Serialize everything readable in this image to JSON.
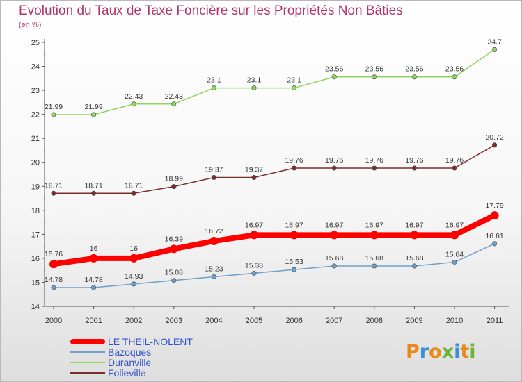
{
  "header": {
    "title": "Evolution du Taux de Taxe Foncière sur les Propriétés Non Bâties",
    "subtitle": "(en %)"
  },
  "logo": {
    "letters": [
      "P",
      "r",
      "o",
      "x",
      "i",
      "t",
      "i"
    ],
    "colors": [
      "#e8891b",
      "#3b8fd6",
      "#e8891b",
      "#6bb63a",
      "#3b8fd6",
      "#e8891b",
      "#6bb63a"
    ]
  },
  "chart_data": {
    "type": "line",
    "title": "Evolution du Taux de Taxe Foncière sur les Propriétés Non Bâties",
    "subtitle": "(en %)",
    "xlabel": "",
    "ylabel": "",
    "categories": [
      "2000",
      "2001",
      "2002",
      "2003",
      "2004",
      "2005",
      "2006",
      "2007",
      "2008",
      "2009",
      "2010",
      "2011"
    ],
    "ylim": [
      14,
      25
    ],
    "yticks": [
      "14",
      "15",
      "16",
      "17",
      "18",
      "19",
      "20",
      "21",
      "22",
      "23",
      "24",
      "25"
    ],
    "grid": false,
    "legend_position": "bottom-left",
    "series": [
      {
        "name": "LE THEIL-NOLENT",
        "color": "#ff0000",
        "emphasis": true,
        "values": [
          15.76,
          16,
          16,
          16.39,
          16.72,
          16.97,
          16.97,
          16.97,
          16.97,
          16.97,
          16.97,
          17.79
        ],
        "labels": [
          "15.76",
          "16",
          "16",
          "16.39",
          "16.72",
          "16.97",
          "16.97",
          "16.97",
          "16.97",
          "16.97",
          "16.97",
          "17.79"
        ]
      },
      {
        "name": "Bazoques",
        "color": "#6f9fcb",
        "emphasis": false,
        "values": [
          14.78,
          14.78,
          14.93,
          15.08,
          15.23,
          15.38,
          15.53,
          15.68,
          15.68,
          15.68,
          15.84,
          16.61
        ],
        "labels": [
          "14.78",
          "14.78",
          "14.93",
          "15.08",
          "15.23",
          "15.38",
          "15.53",
          "15.68",
          "15.68",
          "15.68",
          "15.84",
          "16.61"
        ]
      },
      {
        "name": "Duranville",
        "color": "#8fd65f",
        "emphasis": false,
        "values": [
          21.99,
          21.99,
          22.43,
          22.43,
          23.1,
          23.1,
          23.1,
          23.56,
          23.56,
          23.56,
          23.56,
          24.7
        ],
        "labels": [
          "21.99",
          "21.99",
          "22.43",
          "22.43",
          "23.1",
          "23.1",
          "23.1",
          "23.56",
          "23.56",
          "23.56",
          "23.56",
          "24.7"
        ]
      },
      {
        "name": "Folleville",
        "color": "#7a2e2e",
        "emphasis": false,
        "values": [
          18.71,
          18.71,
          18.71,
          18.99,
          19.37,
          19.37,
          19.76,
          19.76,
          19.76,
          19.76,
          19.76,
          20.72
        ],
        "labels": [
          "18.71",
          "18.71",
          "18.71",
          "18.99",
          "19.37",
          "19.37",
          "19.76",
          "19.76",
          "19.76",
          "19.76",
          "19.76",
          "20.72"
        ]
      }
    ]
  }
}
